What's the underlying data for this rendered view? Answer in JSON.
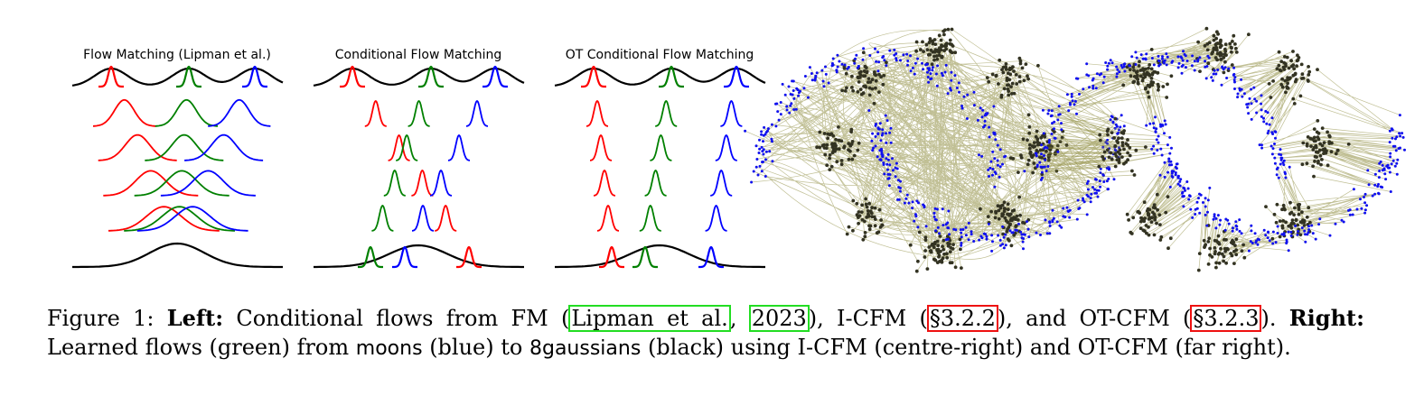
{
  "panels": [
    {
      "title": "Flow Matching (Lipman et al.)"
    },
    {
      "title": "Conditional Flow Matching"
    },
    {
      "title": "OT Conditional Flow Matching"
    }
  ],
  "colors": {
    "red": "#ff0000",
    "green": "#008000",
    "blue": "#0000ff",
    "black": "#000000",
    "flow_line": "#8c8a3c",
    "point_dark": "#333322",
    "point_blue": "#1010ee",
    "cite_box": "#22dd22",
    "ref_box": "#ee1111"
  },
  "caption": {
    "label": "Figure 1:",
    "left_head": "Left:",
    "left_text_1": "Conditional flows from FM (",
    "cite_author": "Lipman et al.",
    "cite_sep": ", ",
    "cite_year": "2023",
    "left_text_2": "), I-CFM (",
    "ref_icfm": "§3.2.2",
    "left_text_3": "), and OT-CFM (",
    "ref_otcfm": "§3.2.3",
    "left_text_4": ").",
    "right_head": "Right:",
    "right_text_1": "Learned flows (green) from",
    "dataset_source": "moons",
    "right_text_2": "(blue) to",
    "dataset_target": "8gaussians",
    "right_text_3": "(black) using I-CFM (centre-right) and OT-CFM (far right)."
  }
}
